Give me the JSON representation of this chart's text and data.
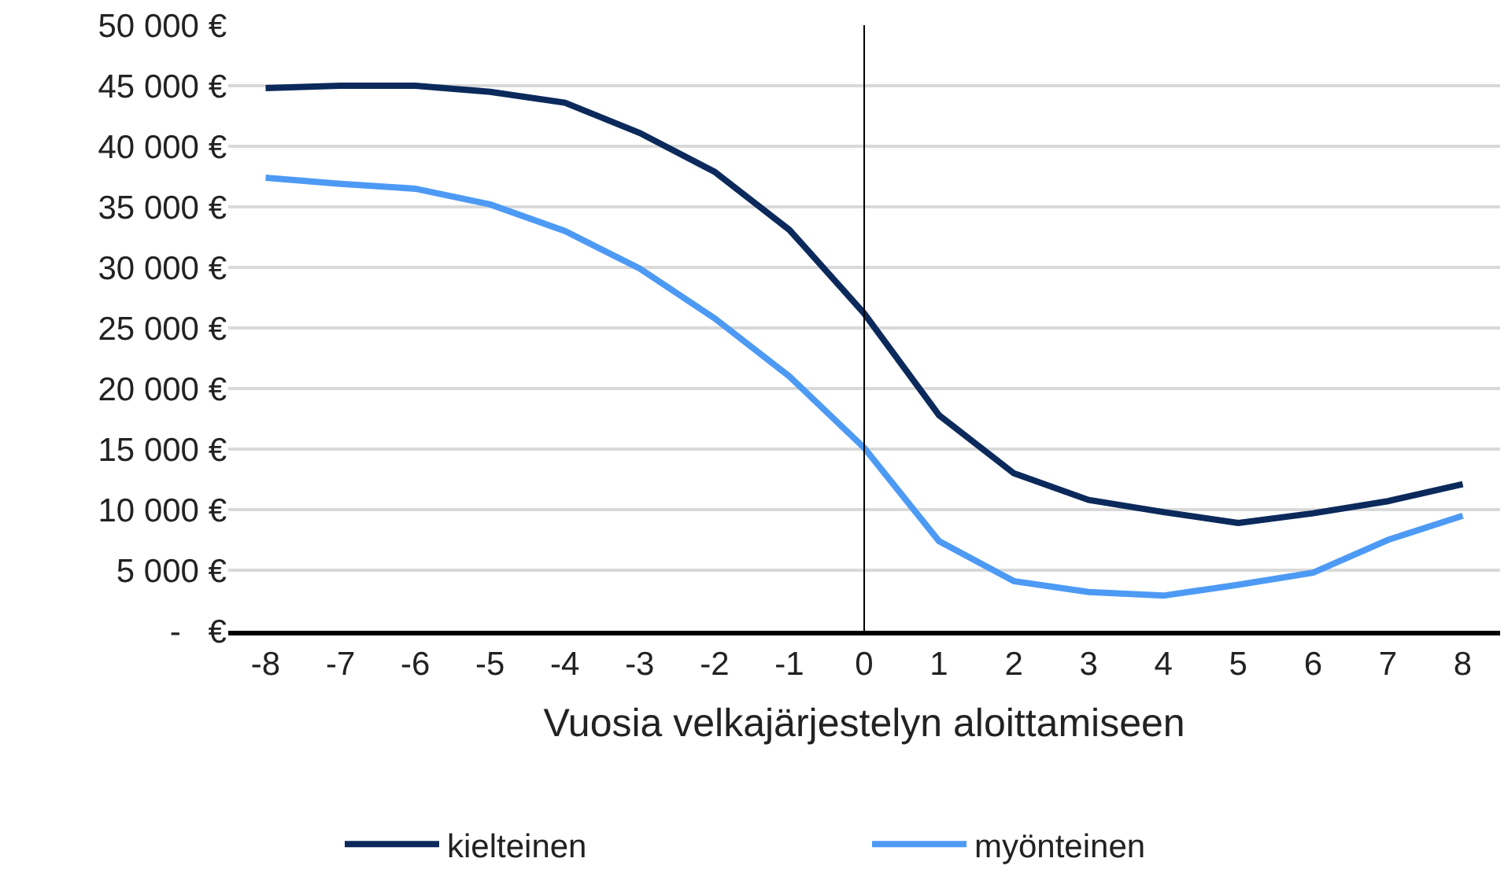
{
  "chart_data": {
    "type": "line",
    "xlabel": "Vuosia velkajärjestelyn aloittamiseen",
    "x": [
      -8,
      -7,
      -6,
      -5,
      -4,
      -3,
      -2,
      -1,
      0,
      1,
      2,
      3,
      4,
      5,
      6,
      7,
      8
    ],
    "series": [
      {
        "name": "kielteinen",
        "color": "#0b2a5b",
        "values": [
          44800,
          45000,
          45000,
          44500,
          43600,
          41100,
          37900,
          33100,
          26200,
          17800,
          13000,
          10800,
          9800,
          8900,
          9700,
          10700,
          12100
        ]
      },
      {
        "name": "myönteinen",
        "color": "#4d9af5",
        "values": [
          37400,
          36900,
          36500,
          35200,
          33000,
          29900,
          25800,
          21000,
          15100,
          7400,
          4100,
          3200,
          2900,
          3800,
          4800,
          7500,
          9500
        ]
      }
    ],
    "xlim": [
      -8.5,
      8.5
    ],
    "xticks": [
      -8,
      -7,
      -6,
      -5,
      -4,
      -3,
      -2,
      -1,
      0,
      1,
      2,
      3,
      4,
      5,
      6,
      7,
      8
    ],
    "ylim": [
      0,
      50000
    ],
    "yticks": [
      {
        "value": 0,
        "label": "-   €"
      },
      {
        "value": 5000,
        "label": "5 000 €"
      },
      {
        "value": 10000,
        "label": "10 000 €"
      },
      {
        "value": 15000,
        "label": "15 000 €"
      },
      {
        "value": 20000,
        "label": "20 000 €"
      },
      {
        "value": 25000,
        "label": "25 000 €"
      },
      {
        "value": 30000,
        "label": "30 000 €"
      },
      {
        "value": 35000,
        "label": "35 000 €"
      },
      {
        "value": 40000,
        "label": "40 000 €"
      },
      {
        "value": 45000,
        "label": "45 000 €"
      },
      {
        "value": 50000,
        "label": "50 000 €"
      }
    ],
    "ref_lines": [
      {
        "axis": "x",
        "value": 0,
        "color": "#000000"
      }
    ],
    "grid": "y",
    "legend": "bottom",
    "marker": "none",
    "line_style": "solid"
  }
}
